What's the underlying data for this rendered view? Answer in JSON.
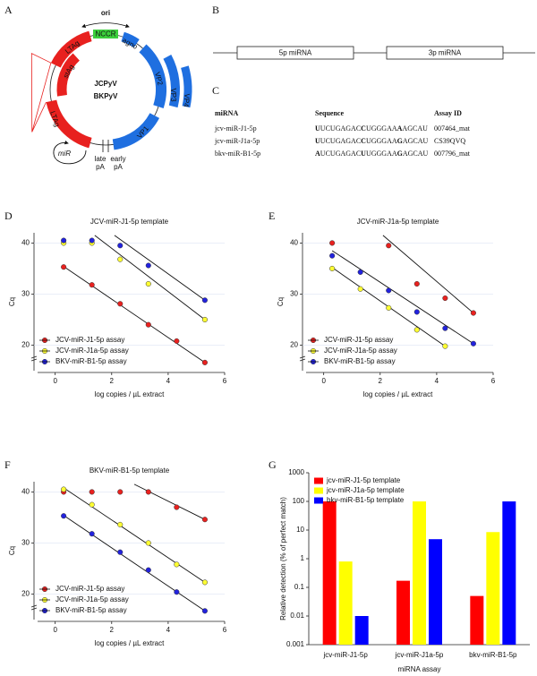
{
  "diagram": {
    "panel": "A",
    "ori": "ori",
    "nccr": "NCCR",
    "agno": "agno",
    "vp2": "VP2",
    "vp3": "VP3",
    "vp4": "VP4",
    "vp1": "VP1",
    "ltag_top": "LTAg",
    "stag": "stAg",
    "ltag_left": "LTAg",
    "virus1": "JCPyV",
    "virus2": "BKPyV",
    "mir": "miR",
    "late": "late",
    "late_pa": "pA",
    "early": "early",
    "early_pa": "pA"
  },
  "precursor": {
    "panel": "B",
    "labels": [
      "5p miRNA",
      "3p miRNA"
    ]
  },
  "table": {
    "panel": "C",
    "header": [
      "miRNA",
      "Sequence",
      "Assay ID"
    ],
    "rows": [
      [
        "jcv-miR-J1-5p",
        "UUCUGAGACCUGGGAAAAGCAU",
        "007464_mat"
      ],
      [
        "jcv-miR-J1a-5p",
        "UUCUGAGACCUGGGAAGAGCAU",
        "CS39QVQ"
      ],
      [
        "bkv-miR-B1-5p",
        "AUCUGAGACUUGGGAAGAGCAU",
        "007796_mat"
      ]
    ],
    "bold_positions": [
      0,
      9,
      16
    ]
  },
  "chart_data": [
    {
      "type": "scatter",
      "panel": "D",
      "title": "JCV-miR-J1-5p template",
      "xlabel": "log copies / µL extract",
      "ylabel": "Cq",
      "xlim": [
        -0.75,
        6
      ],
      "ylim": [
        15,
        42
      ],
      "xticks": [
        0,
        2,
        4,
        6
      ],
      "yticks": [
        20,
        30,
        40
      ],
      "legend": "lower left",
      "series": [
        {
          "name": "JCV-miR-J1-5p assay",
          "color": "#e8211f",
          "x": [
            0.3,
            1.3,
            2.3,
            3.3,
            4.3,
            5.3
          ],
          "values": [
            35.3,
            31.8,
            28.1,
            24.0,
            20.8,
            16.6
          ],
          "fit": {
            "x": [
              0.3,
              5.3
            ],
            "values": [
              35.4,
              16.6
            ]
          }
        },
        {
          "name": "JCV-miR-J1a-5p assay",
          "color": "#ffff33",
          "x": [
            0.3,
            1.3,
            2.3,
            3.3,
            5.3
          ],
          "values": [
            40.0,
            40.0,
            36.8,
            32.0,
            25.0
          ],
          "fit": {
            "x": [
              1.4,
              5.3
            ],
            "values": [
              41.5,
              25.0
            ]
          }
        },
        {
          "name": "BKV-miR-B1-5p assay",
          "color": "#2222dd",
          "x": [
            0.3,
            1.3,
            2.3,
            3.3,
            5.3
          ],
          "values": [
            40.5,
            40.5,
            39.5,
            35.6,
            28.8
          ],
          "fit": {
            "x": [
              2.1,
              5.3
            ],
            "values": [
              41.5,
              28.8
            ]
          }
        }
      ]
    },
    {
      "type": "scatter",
      "panel": "E",
      "title": "JCV-miR-J1a-5p template",
      "xlabel": "log copies / µL extract",
      "ylabel": "Cq",
      "xlim": [
        -0.75,
        6
      ],
      "ylim": [
        15,
        42
      ],
      "xticks": [
        0,
        2,
        4,
        6
      ],
      "yticks": [
        20,
        30,
        40
      ],
      "legend": "lower left",
      "series": [
        {
          "name": "JCV-miR-J1-5p assay",
          "color": "#e8211f",
          "x": [
            0.3,
            2.3,
            3.3,
            4.3,
            5.3
          ],
          "values": [
            40.0,
            39.5,
            32.0,
            29.2,
            26.3
          ],
          "fit": {
            "x": [
              2.1,
              5.3
            ],
            "values": [
              41.5,
              26.3
            ]
          }
        },
        {
          "name": "JCV-miR-J1a-5p assay",
          "color": "#ffff33",
          "x": [
            0.3,
            1.3,
            2.3,
            3.3,
            4.3
          ],
          "values": [
            35.0,
            31.0,
            27.3,
            23.0,
            19.8
          ],
          "fit": {
            "x": [
              0.3,
              4.3
            ],
            "values": [
              35.2,
              19.8
            ]
          }
        },
        {
          "name": "BKV-miR-B1-5p assay",
          "color": "#2222dd",
          "x": [
            0.3,
            1.3,
            2.3,
            3.3,
            4.3,
            5.3
          ],
          "values": [
            37.5,
            34.3,
            30.7,
            26.5,
            23.3,
            20.3
          ],
          "fit": {
            "x": [
              0.3,
              5.3
            ],
            "values": [
              38.5,
              20.3
            ]
          }
        }
      ]
    },
    {
      "type": "scatter",
      "panel": "F",
      "title": "BKV-miR-B1-5p template",
      "xlabel": "log copies / µL extract",
      "ylabel": "Cq",
      "xlim": [
        -0.75,
        6
      ],
      "ylim": [
        15,
        42
      ],
      "xticks": [
        0,
        2,
        4,
        6
      ],
      "yticks": [
        20,
        30,
        40
      ],
      "legend": "lower left",
      "series": [
        {
          "name": "JCV-miR-J1-5p assay",
          "color": "#e8211f",
          "x": [
            0.3,
            1.3,
            2.3,
            3.3,
            4.3,
            5.3
          ],
          "values": [
            40.0,
            40.0,
            40.0,
            40.0,
            37.0,
            34.6
          ],
          "fit": {
            "x": [
              2.8,
              5.3
            ],
            "values": [
              41.5,
              34.6
            ]
          }
        },
        {
          "name": "JCV-miR-J1a-5p assay",
          "color": "#ffff33",
          "x": [
            0.3,
            1.3,
            2.3,
            3.3,
            4.3,
            5.3
          ],
          "values": [
            40.5,
            37.5,
            33.6,
            30.0,
            25.8,
            22.3
          ],
          "fit": {
            "x": [
              0.3,
              5.3
            ],
            "values": [
              40.8,
              22.3
            ]
          }
        },
        {
          "name": "BKV-miR-B1-5p assay",
          "color": "#2222dd",
          "x": [
            0.3,
            1.3,
            2.3,
            3.3,
            4.3,
            5.3
          ],
          "values": [
            35.3,
            31.8,
            28.2,
            24.7,
            20.4,
            16.7
          ],
          "fit": {
            "x": [
              0.3,
              5.3
            ],
            "values": [
              35.4,
              16.7
            ]
          }
        }
      ]
    },
    {
      "type": "bar",
      "panel": "G",
      "xlabel": "miRNA assay",
      "ylabel": "Relative detection (% of perfect match)",
      "log_scale": true,
      "ylim": [
        0.001,
        1000
      ],
      "yticks": [
        0.001,
        0.01,
        0.1,
        1,
        10,
        100,
        1000
      ],
      "legend": "upper left",
      "categories": [
        "jcv-miR-J1-5p",
        "jcv-miR-J1a-5p",
        "bkv-miR-B1-5p"
      ],
      "series": [
        {
          "name": "jcv-miR-J1-5p template",
          "color": "#ff0000",
          "values": [
            100,
            0.17,
            0.05
          ]
        },
        {
          "name": "jcv-miR-J1a-5p template",
          "color": "#ffff00",
          "values": [
            0.8,
            100,
            8.5
          ]
        },
        {
          "name": "bkv-miR-B1-5p template",
          "color": "#0000ff",
          "values": [
            0.01,
            4.8,
            100
          ]
        }
      ]
    }
  ]
}
